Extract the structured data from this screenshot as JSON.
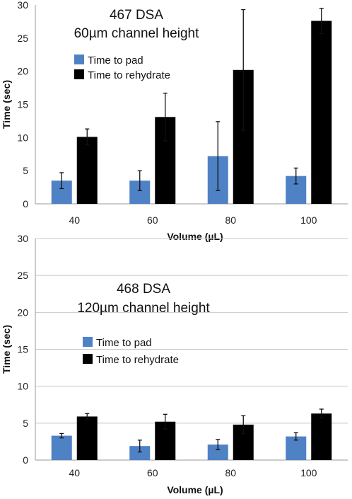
{
  "chart_data": [
    {
      "type": "bar",
      "title": [
        "467 DSA",
        "60µm channel height"
      ],
      "xlabel": "Volume (µL)",
      "ylabel": "Time (sec)",
      "categories": [
        "40",
        "60",
        "80",
        "100"
      ],
      "ylim": [
        0,
        30
      ],
      "yticks": [
        0,
        5,
        10,
        15,
        20,
        25,
        30
      ],
      "grid": false,
      "legend": "upper-left",
      "series": [
        {
          "name": "Time to pad",
          "color": "#4f81c5",
          "values": [
            3.5,
            3.5,
            7.2,
            4.2
          ],
          "errors": [
            1.2,
            1.5,
            5.2,
            1.2
          ]
        },
        {
          "name": "Time to rehydrate",
          "color": "#000000",
          "values": [
            10.1,
            13.1,
            20.2,
            27.6
          ],
          "errors": [
            1.2,
            3.6,
            9.1,
            1.9
          ]
        }
      ]
    },
    {
      "type": "bar",
      "title": [
        "468 DSA",
        "120µm channel height"
      ],
      "xlabel": "Volume (µL)",
      "ylabel": "Time (sec)",
      "categories": [
        "40",
        "60",
        "80",
        "100"
      ],
      "ylim": [
        0,
        30
      ],
      "yticks": [
        0,
        5,
        10,
        15,
        20,
        25,
        30
      ],
      "grid": true,
      "legend": "middle-left",
      "series": [
        {
          "name": "Time to pad",
          "color": "#4f81c5",
          "values": [
            3.3,
            1.9,
            2.1,
            3.2
          ],
          "errors": [
            0.3,
            0.8,
            0.7,
            0.5
          ]
        },
        {
          "name": "Time to rehydrate",
          "color": "#000000",
          "values": [
            5.9,
            5.2,
            4.8,
            6.3
          ],
          "errors": [
            0.4,
            1.0,
            1.2,
            0.6
          ]
        }
      ]
    }
  ]
}
